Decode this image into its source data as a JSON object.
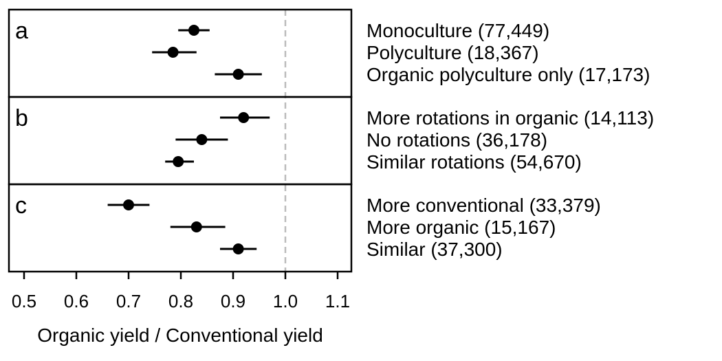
{
  "chart_data": {
    "type": "scatter",
    "subtype": "forest-plot-with-error-bars",
    "xlabel": "Organic yield / Conventional yield",
    "ylabel": "",
    "xlim": [
      0.47,
      1.13
    ],
    "x_ticks": [
      0.5,
      0.6,
      0.7,
      0.8,
      0.9,
      1.0,
      1.1
    ],
    "x_tick_labels": [
      "0.5",
      "0.6",
      "0.7",
      "0.8",
      "0.9",
      "1.0",
      "1.1"
    ],
    "reference_line": {
      "x": 1.0,
      "style": "dashed",
      "color": "#bbbbbb"
    },
    "grid": false,
    "marker_color": "#000000",
    "panels": [
      {
        "label": "a",
        "rows": [
          {
            "label": "Monoculture (77,449)",
            "estimate": 0.825,
            "ci_low": 0.795,
            "ci_high": 0.855
          },
          {
            "label": "Polyculture (18,367)",
            "estimate": 0.785,
            "ci_low": 0.745,
            "ci_high": 0.83
          },
          {
            "label": "Organic polyculture only (17,173)",
            "estimate": 0.91,
            "ci_low": 0.865,
            "ci_high": 0.955
          }
        ]
      },
      {
        "label": "b",
        "rows": [
          {
            "label": "More rotations in organic (14,113)",
            "estimate": 0.92,
            "ci_low": 0.875,
            "ci_high": 0.97
          },
          {
            "label": "No rotations (36,178)",
            "estimate": 0.84,
            "ci_low": 0.79,
            "ci_high": 0.89
          },
          {
            "label": "Similar rotations (54,670)",
            "estimate": 0.795,
            "ci_low": 0.77,
            "ci_high": 0.825
          }
        ]
      },
      {
        "label": "c",
        "rows": [
          {
            "label": "More conventional (33,379)",
            "estimate": 0.7,
            "ci_low": 0.66,
            "ci_high": 0.74
          },
          {
            "label": "More organic (15,167)",
            "estimate": 0.83,
            "ci_low": 0.78,
            "ci_high": 0.885
          },
          {
            "label": "Similar (37,300)",
            "estimate": 0.91,
            "ci_low": 0.875,
            "ci_high": 0.945
          }
        ]
      }
    ]
  }
}
